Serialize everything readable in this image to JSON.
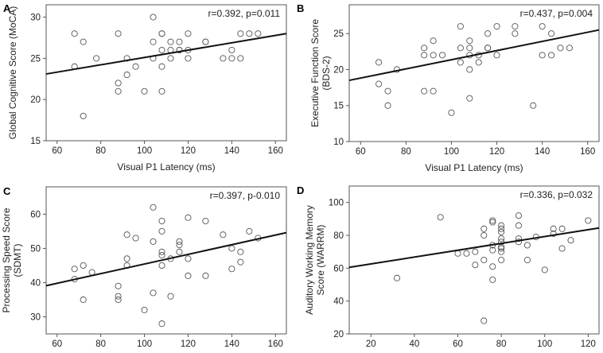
{
  "chart_data": [
    {
      "panel": "A",
      "type": "scatter",
      "xlabel": "Visual P1 Latency (ms)",
      "ylabel": "Global Cognitive Score (MoCA)",
      "annotation": "r=0.392, p=0.011",
      "xlim": [
        55,
        165
      ],
      "ylim": [
        15,
        31.5
      ],
      "xticks": [
        60,
        80,
        100,
        120,
        140,
        160
      ],
      "yticks": [
        15,
        20,
        25,
        30
      ],
      "fit": {
        "x": [
          55,
          165
        ],
        "y": [
          23.1,
          28.0
        ]
      },
      "points": [
        {
          "x": 68,
          "y": 28
        },
        {
          "x": 68,
          "y": 24
        },
        {
          "x": 72,
          "y": 27
        },
        {
          "x": 72,
          "y": 18
        },
        {
          "x": 78,
          "y": 25
        },
        {
          "x": 88,
          "y": 28
        },
        {
          "x": 88,
          "y": 22
        },
        {
          "x": 88,
          "y": 21
        },
        {
          "x": 92,
          "y": 25
        },
        {
          "x": 92,
          "y": 23
        },
        {
          "x": 96,
          "y": 24
        },
        {
          "x": 100,
          "y": 21
        },
        {
          "x": 104,
          "y": 30
        },
        {
          "x": 104,
          "y": 27
        },
        {
          "x": 104,
          "y": 25
        },
        {
          "x": 108,
          "y": 28
        },
        {
          "x": 108,
          "y": 28
        },
        {
          "x": 108,
          "y": 26
        },
        {
          "x": 108,
          "y": 24
        },
        {
          "x": 108,
          "y": 21
        },
        {
          "x": 112,
          "y": 27
        },
        {
          "x": 112,
          "y": 26
        },
        {
          "x": 112,
          "y": 25
        },
        {
          "x": 116,
          "y": 27
        },
        {
          "x": 116,
          "y": 26
        },
        {
          "x": 116,
          "y": 26
        },
        {
          "x": 120,
          "y": 28
        },
        {
          "x": 120,
          "y": 26
        },
        {
          "x": 120,
          "y": 25
        },
        {
          "x": 128,
          "y": 27
        },
        {
          "x": 128,
          "y": 27
        },
        {
          "x": 136,
          "y": 25
        },
        {
          "x": 140,
          "y": 26
        },
        {
          "x": 140,
          "y": 25
        },
        {
          "x": 144,
          "y": 28
        },
        {
          "x": 144,
          "y": 25
        },
        {
          "x": 148,
          "y": 28
        },
        {
          "x": 152,
          "y": 28
        }
      ]
    },
    {
      "panel": "B",
      "type": "scatter",
      "xlabel": "Visual P1 Latency (ms)",
      "ylabel": [
        "Executive Function Score",
        "(BDS-2)"
      ],
      "annotation": "r=0.437, p=0.004",
      "xlim": [
        55,
        165
      ],
      "ylim": [
        10,
        29
      ],
      "xticks": [
        60,
        80,
        100,
        120,
        140,
        160
      ],
      "yticks": [
        10,
        15,
        20,
        25
      ],
      "fit": {
        "x": [
          55,
          165
        ],
        "y": [
          18.5,
          25.5
        ]
      },
      "points": [
        {
          "x": 68,
          "y": 21
        },
        {
          "x": 68,
          "y": 18
        },
        {
          "x": 72,
          "y": 17
        },
        {
          "x": 72,
          "y": 15
        },
        {
          "x": 76,
          "y": 20
        },
        {
          "x": 88,
          "y": 23
        },
        {
          "x": 88,
          "y": 22
        },
        {
          "x": 88,
          "y": 17
        },
        {
          "x": 92,
          "y": 24
        },
        {
          "x": 92,
          "y": 22
        },
        {
          "x": 92,
          "y": 17
        },
        {
          "x": 96,
          "y": 22
        },
        {
          "x": 100,
          "y": 14
        },
        {
          "x": 104,
          "y": 26
        },
        {
          "x": 104,
          "y": 23
        },
        {
          "x": 104,
          "y": 21
        },
        {
          "x": 108,
          "y": 24
        },
        {
          "x": 108,
          "y": 23
        },
        {
          "x": 108,
          "y": 22
        },
        {
          "x": 108,
          "y": 20
        },
        {
          "x": 108,
          "y": 16
        },
        {
          "x": 112,
          "y": 22
        },
        {
          "x": 112,
          "y": 21
        },
        {
          "x": 116,
          "y": 25
        },
        {
          "x": 116,
          "y": 23
        },
        {
          "x": 116,
          "y": 23
        },
        {
          "x": 120,
          "y": 26
        },
        {
          "x": 120,
          "y": 22
        },
        {
          "x": 128,
          "y": 26
        },
        {
          "x": 128,
          "y": 25
        },
        {
          "x": 136,
          "y": 15
        },
        {
          "x": 140,
          "y": 26
        },
        {
          "x": 140,
          "y": 22
        },
        {
          "x": 144,
          "y": 25
        },
        {
          "x": 144,
          "y": 22
        },
        {
          "x": 148,
          "y": 23
        },
        {
          "x": 152,
          "y": 23
        }
      ]
    },
    {
      "panel": "C",
      "type": "scatter",
      "xlabel": "Visual P1 Latency (ms)",
      "ylabel": [
        "Processing Speed Score",
        "(SDMT)"
      ],
      "annotation": "r=0.397, p-0.010",
      "xlim": [
        55,
        165
      ],
      "ylim": [
        25,
        68
      ],
      "xticks": [
        60,
        80,
        100,
        120,
        140,
        160
      ],
      "yticks": [
        30,
        40,
        50,
        60
      ],
      "fit": {
        "x": [
          55,
          165
        ],
        "y": [
          39.1,
          54.6
        ]
      },
      "points": [
        {
          "x": 68,
          "y": 44
        },
        {
          "x": 68,
          "y": 41
        },
        {
          "x": 72,
          "y": 45
        },
        {
          "x": 72,
          "y": 35
        },
        {
          "x": 76,
          "y": 43
        },
        {
          "x": 88,
          "y": 39
        },
        {
          "x": 88,
          "y": 36
        },
        {
          "x": 88,
          "y": 35
        },
        {
          "x": 92,
          "y": 54
        },
        {
          "x": 92,
          "y": 47
        },
        {
          "x": 92,
          "y": 45
        },
        {
          "x": 96,
          "y": 53
        },
        {
          "x": 100,
          "y": 32
        },
        {
          "x": 104,
          "y": 62
        },
        {
          "x": 104,
          "y": 52
        },
        {
          "x": 104,
          "y": 37
        },
        {
          "x": 108,
          "y": 58
        },
        {
          "x": 108,
          "y": 55
        },
        {
          "x": 108,
          "y": 49
        },
        {
          "x": 108,
          "y": 48
        },
        {
          "x": 108,
          "y": 45
        },
        {
          "x": 108,
          "y": 28
        },
        {
          "x": 112,
          "y": 47
        },
        {
          "x": 112,
          "y": 36
        },
        {
          "x": 116,
          "y": 52
        },
        {
          "x": 116,
          "y": 51
        },
        {
          "x": 116,
          "y": 49
        },
        {
          "x": 120,
          "y": 59
        },
        {
          "x": 120,
          "y": 47
        },
        {
          "x": 120,
          "y": 42
        },
        {
          "x": 128,
          "y": 58
        },
        {
          "x": 128,
          "y": 42
        },
        {
          "x": 136,
          "y": 54
        },
        {
          "x": 140,
          "y": 50
        },
        {
          "x": 140,
          "y": 44
        },
        {
          "x": 144,
          "y": 49
        },
        {
          "x": 144,
          "y": 46
        },
        {
          "x": 148,
          "y": 55
        },
        {
          "x": 152,
          "y": 53
        }
      ]
    },
    {
      "panel": "D",
      "type": "scatter",
      "xlabel": "Visual P1 Latency (ms)",
      "ylabel": [
        "Auditory Working Memory",
        "Score (WARRM)"
      ],
      "annotation": "r=0.336, p=0.032",
      "xlim": [
        10,
        125
      ],
      "ylim": [
        20,
        110
      ],
      "xticks": [
        20,
        40,
        60,
        80,
        100,
        120
      ],
      "yticks": [
        20,
        40,
        60,
        80,
        100
      ],
      "fit": {
        "x": [
          10,
          125
        ],
        "y": [
          60.5,
          84.5
        ]
      },
      "points": [
        {
          "x": 32,
          "y": 54
        },
        {
          "x": 52,
          "y": 91
        },
        {
          "x": 60,
          "y": 69
        },
        {
          "x": 64,
          "y": 69
        },
        {
          "x": 68,
          "y": 70
        },
        {
          "x": 68,
          "y": 62
        },
        {
          "x": 72,
          "y": 84
        },
        {
          "x": 72,
          "y": 80
        },
        {
          "x": 72,
          "y": 65
        },
        {
          "x": 72,
          "y": 28
        },
        {
          "x": 76,
          "y": 89
        },
        {
          "x": 76,
          "y": 88
        },
        {
          "x": 76,
          "y": 74
        },
        {
          "x": 76,
          "y": 71
        },
        {
          "x": 76,
          "y": 61
        },
        {
          "x": 76,
          "y": 53
        },
        {
          "x": 80,
          "y": 86
        },
        {
          "x": 80,
          "y": 84
        },
        {
          "x": 80,
          "y": 82
        },
        {
          "x": 80,
          "y": 78
        },
        {
          "x": 80,
          "y": 76
        },
        {
          "x": 80,
          "y": 73
        },
        {
          "x": 80,
          "y": 72
        },
        {
          "x": 80,
          "y": 70
        },
        {
          "x": 80,
          "y": 65
        },
        {
          "x": 88,
          "y": 92
        },
        {
          "x": 88,
          "y": 86
        },
        {
          "x": 88,
          "y": 78
        },
        {
          "x": 88,
          "y": 76
        },
        {
          "x": 92,
          "y": 74
        },
        {
          "x": 92,
          "y": 65
        },
        {
          "x": 96,
          "y": 79
        },
        {
          "x": 100,
          "y": 59
        },
        {
          "x": 104,
          "y": 84
        },
        {
          "x": 104,
          "y": 81
        },
        {
          "x": 108,
          "y": 72
        },
        {
          "x": 108,
          "y": 84
        },
        {
          "x": 112,
          "y": 77
        },
        {
          "x": 120,
          "y": 89
        }
      ]
    }
  ]
}
